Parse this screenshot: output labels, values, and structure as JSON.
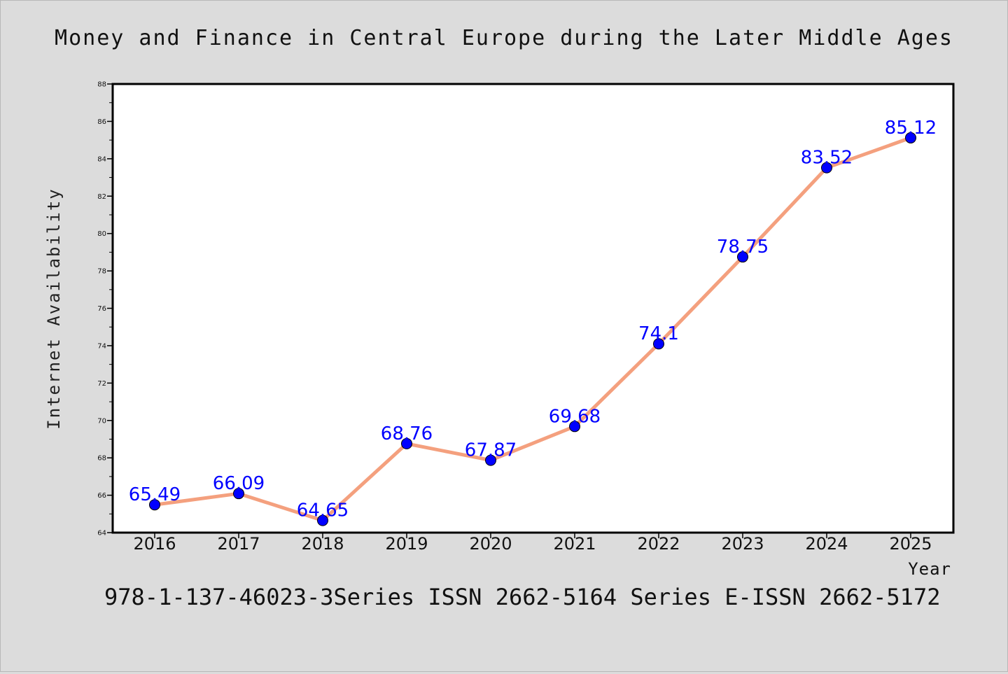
{
  "chart_data": {
    "type": "line",
    "title": "Money and Finance in Central Europe during the Later Middle Ages",
    "xlabel": "Year",
    "ylabel": "Internet Availability",
    "categories": [
      "2016",
      "2017",
      "2018",
      "2019",
      "2020",
      "2021",
      "2022",
      "2023",
      "2024",
      "2025"
    ],
    "series": [
      {
        "values": [
          65.49,
          66.09,
          64.65,
          68.76,
          67.87,
          69.68,
          74.1,
          78.75,
          83.52,
          85.12
        ],
        "data_labels": [
          "65.49",
          "66.09",
          "64.65",
          "68.76",
          "67.87",
          "69.68",
          "74.1",
          "78.75",
          "83.52",
          "85.12"
        ],
        "line_color": "#f4a07e",
        "marker_color": "#0000ff",
        "marker_edge_color": "#000000"
      }
    ],
    "ylim": [
      64,
      88
    ],
    "yticks": [
      "64",
      "66",
      "68",
      "70",
      "72",
      "74",
      "76",
      "78",
      "80",
      "82",
      "84",
      "86",
      "88"
    ],
    "grid": false,
    "legend": "none",
    "background_color": "#dcdcdc",
    "plot_background_color": "#ffffff",
    "label_color": "#0000ff"
  },
  "footer": {
    "text": "978-1-137-46023-3Series ISSN 2662-5164 Series E-ISSN 2662-5172"
  }
}
